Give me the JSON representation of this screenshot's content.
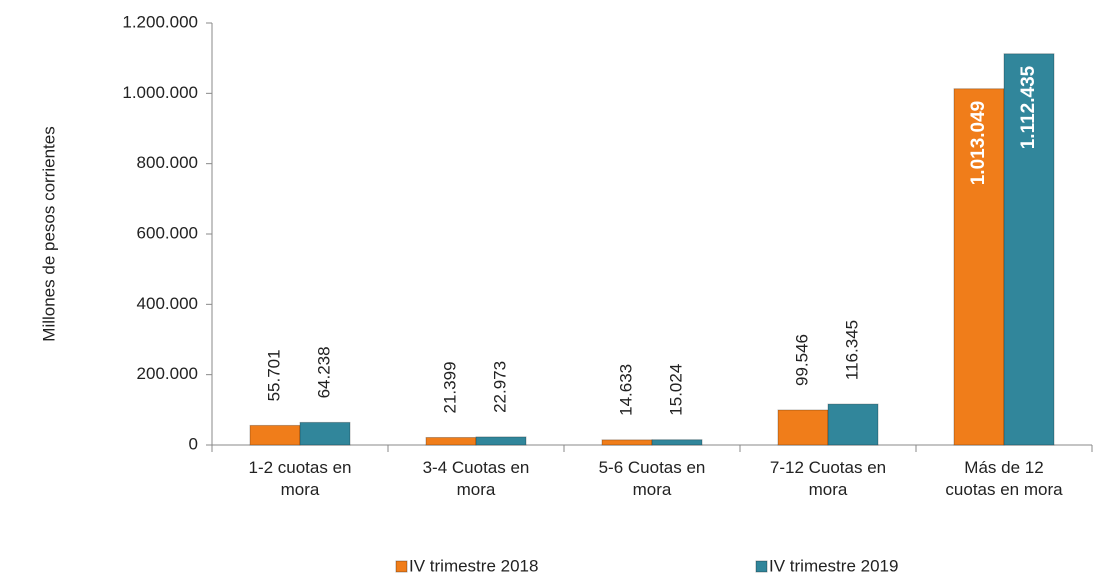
{
  "chart_data": {
    "type": "bar",
    "y_label": "Millones de pesos corrientes",
    "categories": [
      "1-2 cuotas en mora",
      "3-4 Cuotas en mora",
      "5-6 Cuotas en mora",
      "7-12 Cuotas en mora",
      "Más de 12 cuotas en mora"
    ],
    "series": [
      {
        "name": "IV trimestre 2018",
        "color": "#f07d1a",
        "values": [
          55701,
          21399,
          14633,
          99546,
          1013049
        ],
        "value_labels": [
          "55.701",
          "21.399",
          "14.633",
          "99.546",
          "1.013.049"
        ]
      },
      {
        "name": "IV trimestre 2019",
        "color": "#31869b",
        "values": [
          64238,
          22973,
          15024,
          116345,
          1112435
        ],
        "value_labels": [
          "64.238",
          "22.973",
          "15.024",
          "116.345",
          "1.112.435"
        ]
      }
    ],
    "ylim": [
      0,
      1200000
    ],
    "yticks": [
      0,
      {
        "value": 200000,
        "label": "200.000"
      },
      {
        "value": 400000,
        "label": "400.000"
      },
      {
        "value": 600000,
        "label": "600.000"
      },
      {
        "value": 800000,
        "label": "800.000"
      },
      {
        "value": 1000000,
        "label": "1.000.000"
      },
      {
        "value": 1200000,
        "label": "1.200.000"
      }
    ],
    "grid": false,
    "legend": "bottom"
  }
}
